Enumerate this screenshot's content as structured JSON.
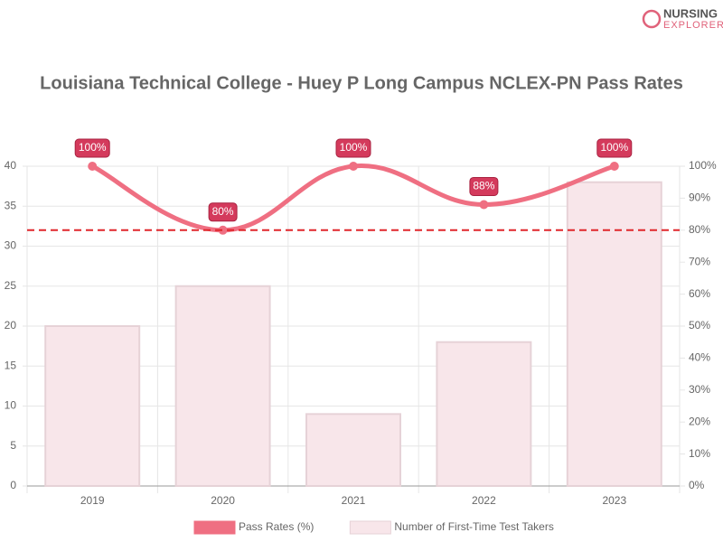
{
  "logo": [
    "NURSING",
    "EXPLORER"
  ],
  "chart_data": {
    "type": "bar-line",
    "title": "Louisiana Technical College - Huey P Long Campus NCLEX-PN Pass Rates",
    "categories": [
      "2019",
      "2020",
      "2021",
      "2022",
      "2023"
    ],
    "series": [
      {
        "name": "Pass Rates (%)",
        "type": "line",
        "axis": "y2",
        "color": "#ef6f82",
        "values": [
          100,
          80,
          100,
          88,
          100
        ],
        "value_labels": [
          "100%",
          "80%",
          "100%",
          "88%",
          "100%"
        ]
      },
      {
        "name": "Number of First-Time Test Takers",
        "type": "bar",
        "axis": "y",
        "color": "#f8e6ea",
        "values": [
          20,
          25,
          9,
          18,
          38
        ]
      }
    ],
    "reference_line": {
      "value": 80,
      "axis": "y2",
      "color": "#e0262b"
    },
    "ylim": [
      0,
      40
    ],
    "yticks": [
      0,
      5,
      10,
      15,
      20,
      25,
      30,
      35,
      40
    ],
    "y2lim": [
      0,
      100
    ],
    "y2ticks": [
      {
        "value": 0,
        "label": "0%"
      },
      {
        "value": 10,
        "label": "10%"
      },
      {
        "value": 20,
        "label": "20%"
      },
      {
        "value": 30,
        "label": "30%"
      },
      {
        "value": 40,
        "label": "40%"
      },
      {
        "value": 50,
        "label": "50%"
      },
      {
        "value": 60,
        "label": "60%"
      },
      {
        "value": 70,
        "label": "70%"
      },
      {
        "value": 80,
        "label": "80%"
      },
      {
        "value": 90,
        "label": "90%"
      },
      {
        "value": 100,
        "label": "100%"
      }
    ],
    "grid": true,
    "legend": "bottom"
  }
}
